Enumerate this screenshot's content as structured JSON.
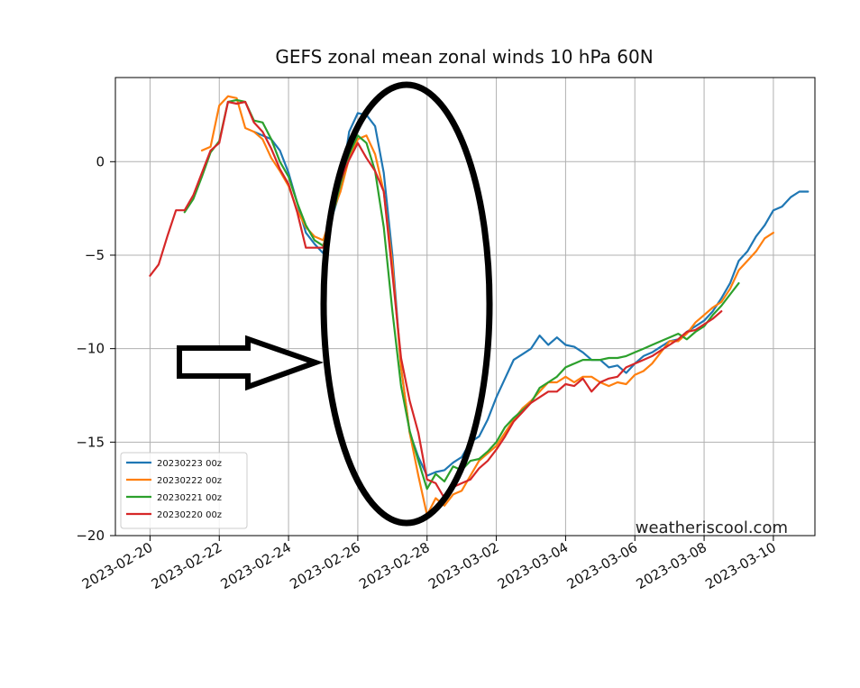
{
  "chart_data": {
    "type": "line",
    "title": "GEFS zonal mean zonal winds 10 hPa 60N",
    "xlabel": "",
    "ylabel": "",
    "ylim": [
      -20,
      4.5
    ],
    "yticks": [
      0,
      -5,
      -10,
      -15,
      -20
    ],
    "ytick_labels": [
      "0",
      "−5",
      "−10",
      "−15",
      "−20"
    ],
    "xlim_days": [
      -1.0,
      19.2
    ],
    "xticks": [
      {
        "day": 0,
        "label": "2023-02-20"
      },
      {
        "day": 2,
        "label": "2023-02-22"
      },
      {
        "day": 4,
        "label": "2023-02-24"
      },
      {
        "day": 6,
        "label": "2023-02-26"
      },
      {
        "day": 8,
        "label": "2023-02-28"
      },
      {
        "day": 10,
        "label": "2023-03-02"
      },
      {
        "day": 12,
        "label": "2023-03-04"
      },
      {
        "day": 14,
        "label": "2023-03-06"
      },
      {
        "day": 16,
        "label": "2023-03-08"
      },
      {
        "day": 18,
        "label": "2023-03-10"
      }
    ],
    "grid": true,
    "legend_position": "lower-left",
    "watermark": "weatheriscool.com",
    "series": [
      {
        "name": "20230223 00z",
        "color": "#1f77b4",
        "x": [
          3.0,
          3.25,
          3.5,
          3.75,
          4.0,
          4.25,
          4.5,
          4.75,
          5.0,
          5.25,
          5.5,
          5.75,
          6.0,
          6.25,
          6.5,
          6.75,
          7.0,
          7.25,
          7.5,
          7.75,
          8.0,
          8.25,
          8.5,
          8.75,
          9.0,
          9.25,
          9.5,
          9.75,
          10.0,
          10.25,
          10.5,
          10.75,
          11.0,
          11.25,
          11.5,
          11.75,
          12.0,
          12.25,
          12.5,
          12.75,
          13.0,
          13.25,
          13.5,
          13.75,
          14.0,
          14.25,
          14.5,
          14.75,
          15.0,
          15.25,
          15.5,
          15.75,
          16.0,
          16.25,
          16.5,
          16.75,
          17.0,
          17.25,
          17.5,
          17.75,
          18.0,
          18.25,
          18.5,
          18.75,
          19.0
        ],
        "values": [
          1.6,
          1.4,
          1.2,
          0.6,
          -0.6,
          -2.2,
          -3.8,
          -4.4,
          -4.9,
          -3.0,
          -1.5,
          1.6,
          2.6,
          2.5,
          1.9,
          -0.6,
          -5.0,
          -11.0,
          -14.5,
          -15.8,
          -16.8,
          -16.6,
          -16.5,
          -16.1,
          -15.8,
          -15.0,
          -14.7,
          -13.8,
          -12.6,
          -11.6,
          -10.6,
          -10.3,
          -10.0,
          -9.3,
          -9.8,
          -9.4,
          -9.8,
          -9.9,
          -10.2,
          -10.6,
          -10.6,
          -11.0,
          -10.9,
          -11.3,
          -10.8,
          -10.4,
          -10.2,
          -9.9,
          -9.6,
          -9.5,
          -9.1,
          -8.8,
          -8.5,
          -8.0,
          -7.3,
          -6.5,
          -5.3,
          -4.8,
          -4.0,
          -3.4,
          -2.6,
          -2.4,
          -1.9,
          -1.6,
          -1.6
        ]
      },
      {
        "name": "20230222 00z",
        "color": "#ff7f0e",
        "x": [
          1.5,
          1.75,
          2.0,
          2.25,
          2.5,
          2.75,
          3.0,
          3.25,
          3.5,
          3.75,
          4.0,
          4.25,
          4.5,
          4.75,
          5.0,
          5.25,
          5.5,
          5.75,
          6.0,
          6.25,
          6.5,
          6.75,
          7.0,
          7.25,
          7.5,
          7.75,
          8.0,
          8.25,
          8.5,
          8.75,
          9.0,
          9.25,
          9.5,
          9.75,
          10.0,
          10.25,
          10.5,
          10.75,
          11.0,
          11.25,
          11.5,
          11.75,
          12.0,
          12.25,
          12.5,
          12.75,
          13.0,
          13.25,
          13.5,
          13.75,
          14.0,
          14.25,
          14.5,
          14.75,
          15.0,
          15.25,
          15.5,
          15.75,
          16.0,
          16.25,
          16.5,
          16.75,
          17.0,
          17.25,
          17.5,
          17.75,
          18.0
        ],
        "values": [
          0.6,
          0.8,
          3.0,
          3.5,
          3.4,
          1.8,
          1.6,
          1.2,
          0.2,
          -0.5,
          -1.3,
          -2.6,
          -3.5,
          -4.0,
          -4.2,
          -2.8,
          -1.6,
          0.2,
          1.2,
          1.4,
          0.4,
          -1.6,
          -5.5,
          -11.0,
          -14.5,
          -16.8,
          -18.9,
          -18.0,
          -18.4,
          -17.8,
          -17.6,
          -16.8,
          -16.0,
          -15.6,
          -15.2,
          -14.5,
          -13.8,
          -13.2,
          -12.8,
          -12.3,
          -11.8,
          -11.8,
          -11.5,
          -11.8,
          -11.5,
          -11.5,
          -11.8,
          -12.0,
          -11.8,
          -11.9,
          -11.4,
          -11.2,
          -10.8,
          -10.2,
          -9.6,
          -9.6,
          -9.2,
          -8.6,
          -8.2,
          -7.8,
          -7.5,
          -6.8,
          -5.8,
          -5.3,
          -4.8,
          -4.1,
          -3.8
        ]
      },
      {
        "name": "20230221 00z",
        "color": "#2ca02c",
        "x": [
          1.0,
          1.25,
          1.5,
          1.75,
          2.0,
          2.25,
          2.5,
          2.75,
          3.0,
          3.25,
          3.5,
          3.75,
          4.0,
          4.25,
          4.5,
          4.75,
          5.0,
          5.25,
          5.5,
          5.75,
          6.0,
          6.25,
          6.5,
          6.75,
          7.0,
          7.25,
          7.5,
          7.75,
          8.0,
          8.25,
          8.5,
          8.75,
          9.0,
          9.25,
          9.5,
          9.75,
          10.0,
          10.25,
          10.5,
          10.75,
          11.0,
          11.25,
          11.5,
          11.75,
          12.0,
          12.25,
          12.5,
          12.75,
          13.0,
          13.25,
          13.5,
          13.75,
          14.0,
          14.25,
          14.5,
          14.75,
          15.0,
          15.25,
          15.5,
          15.75,
          16.0,
          16.25,
          16.5,
          16.75,
          17.0
        ],
        "values": [
          -2.7,
          -2.0,
          -0.8,
          0.5,
          1.1,
          3.2,
          3.3,
          3.2,
          2.2,
          2.1,
          1.2,
          0.0,
          -0.8,
          -2.2,
          -3.4,
          -4.2,
          -4.5,
          -3.0,
          -1.2,
          0.4,
          1.4,
          1.0,
          -0.5,
          -3.5,
          -8.0,
          -12.0,
          -14.4,
          -16.0,
          -17.5,
          -16.7,
          -17.1,
          -16.3,
          -16.5,
          -16.0,
          -15.9,
          -15.5,
          -15.0,
          -14.2,
          -13.7,
          -13.3,
          -12.9,
          -12.1,
          -11.8,
          -11.5,
          -11.0,
          -10.8,
          -10.6,
          -10.6,
          -10.6,
          -10.5,
          -10.5,
          -10.4,
          -10.2,
          -10.0,
          -9.8,
          -9.6,
          -9.4,
          -9.2,
          -9.5,
          -9.1,
          -8.8,
          -8.2,
          -7.7,
          -7.1,
          -6.5
        ]
      },
      {
        "name": "20230220 00z",
        "color": "#d62728",
        "x": [
          0.0,
          0.25,
          0.5,
          0.75,
          1.0,
          1.25,
          1.5,
          1.75,
          2.0,
          2.25,
          2.5,
          2.75,
          3.0,
          3.25,
          3.5,
          3.75,
          4.0,
          4.25,
          4.5,
          4.75,
          5.0,
          5.25,
          5.5,
          5.75,
          6.0,
          6.25,
          6.5,
          6.75,
          7.0,
          7.25,
          7.5,
          7.75,
          8.0,
          8.25,
          8.5,
          8.75,
          9.0,
          9.25,
          9.5,
          9.75,
          10.0,
          10.25,
          10.5,
          10.75,
          11.0,
          11.25,
          11.5,
          11.75,
          12.0,
          12.25,
          12.5,
          12.75,
          13.0,
          13.25,
          13.5,
          13.75,
          14.0,
          14.25,
          14.5,
          14.75,
          15.0,
          15.25,
          15.5,
          15.75,
          16.0,
          16.25,
          16.5
        ],
        "values": [
          -6.1,
          -5.5,
          -4.0,
          -2.6,
          -2.6,
          -1.8,
          -0.6,
          0.6,
          1.0,
          3.2,
          3.1,
          3.2,
          2.1,
          1.6,
          0.7,
          -0.4,
          -1.2,
          -2.7,
          -4.6,
          -4.6,
          -4.6,
          -2.8,
          -1.0,
          0.1,
          1.0,
          0.2,
          -0.5,
          -1.6,
          -6.0,
          -10.5,
          -12.8,
          -14.5,
          -17.0,
          -17.2,
          -18.0,
          -17.4,
          -17.2,
          -17.0,
          -16.4,
          -16.0,
          -15.4,
          -14.7,
          -13.9,
          -13.4,
          -12.9,
          -12.6,
          -12.3,
          -12.3,
          -11.9,
          -12.0,
          -11.6,
          -12.3,
          -11.8,
          -11.6,
          -11.5,
          -11.0,
          -10.8,
          -10.6,
          -10.4,
          -10.1,
          -9.8,
          -9.5,
          -9.1,
          -9.0,
          -8.7,
          -8.4,
          -8.0
        ]
      }
    ]
  }
}
